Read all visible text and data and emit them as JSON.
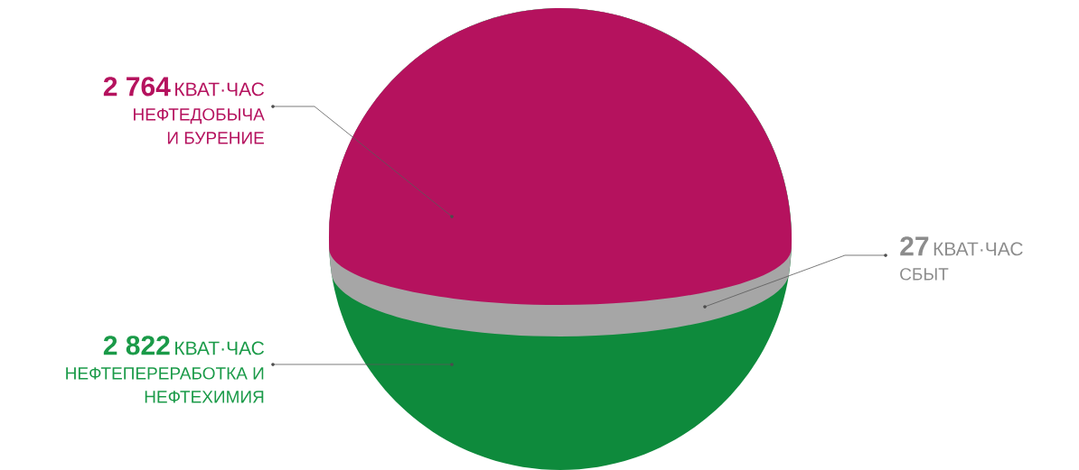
{
  "chart_data": {
    "type": "other",
    "categories": [
      "НЕФТЕДОБЫЧА И БУРЕНИЕ",
      "СБЫТ",
      "НЕФТЕПЕРЕРАБОТКА И НЕФТЕХИМИЯ"
    ],
    "values": [
      2764,
      27,
      2822
    ],
    "data_labels": true,
    "annotations": [
      "КВАТ·ЧАС",
      "КВАТ·ЧАС",
      "КВАТ·ЧАС"
    ],
    "colors": [
      "#b5125e",
      "#a6a6a6",
      "#0e8a3c"
    ]
  }
}
